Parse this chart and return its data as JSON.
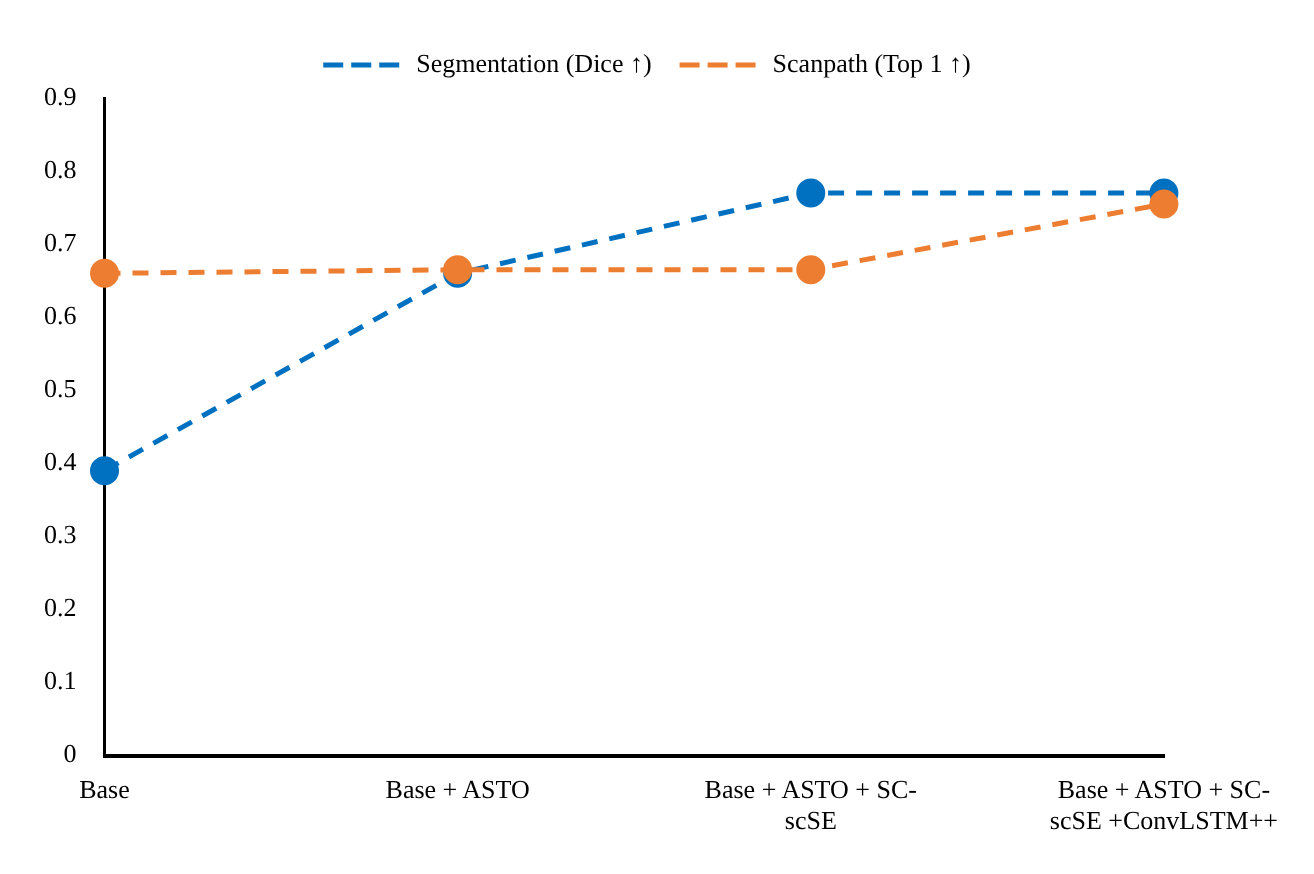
{
  "chart_data": {
    "type": "line",
    "categories": [
      "Base",
      "Base + ASTO",
      "Base + ASTO + SC-scSE",
      "Base + ASTO + SC-scSE +ConvLSTM++"
    ],
    "series": [
      {
        "name": "Segmentation (Dice ↑)",
        "color": "#0070c0",
        "values": [
          0.39,
          0.66,
          0.77,
          0.77
        ]
      },
      {
        "name": "Scanpath (Top 1 ↑)",
        "color": "#ed7d31",
        "values": [
          0.66,
          0.665,
          0.665,
          0.755
        ]
      }
    ],
    "ylim": [
      0,
      0.9
    ],
    "yticks": [
      0,
      0.1,
      0.2,
      0.3,
      0.4,
      0.5,
      0.6,
      0.7,
      0.8,
      0.9
    ],
    "grid": false,
    "legend": "top",
    "marker": "circle",
    "line_style": "dashed"
  }
}
